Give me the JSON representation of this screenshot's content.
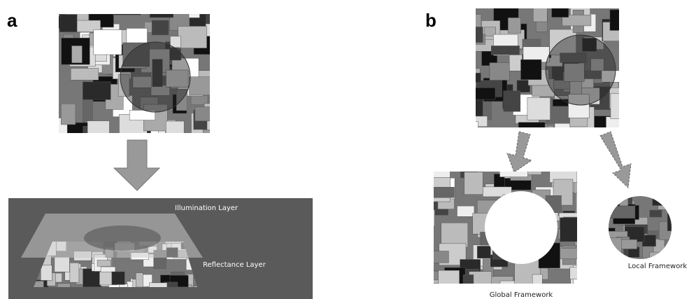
{
  "panels": [
    {
      "label": "a",
      "layers": [
        "Illumination Layer",
        "Reflectance Layer"
      ]
    },
    {
      "label": "b",
      "frameworks": [
        "Global Framework",
        "Local Framework"
      ]
    }
  ]
}
